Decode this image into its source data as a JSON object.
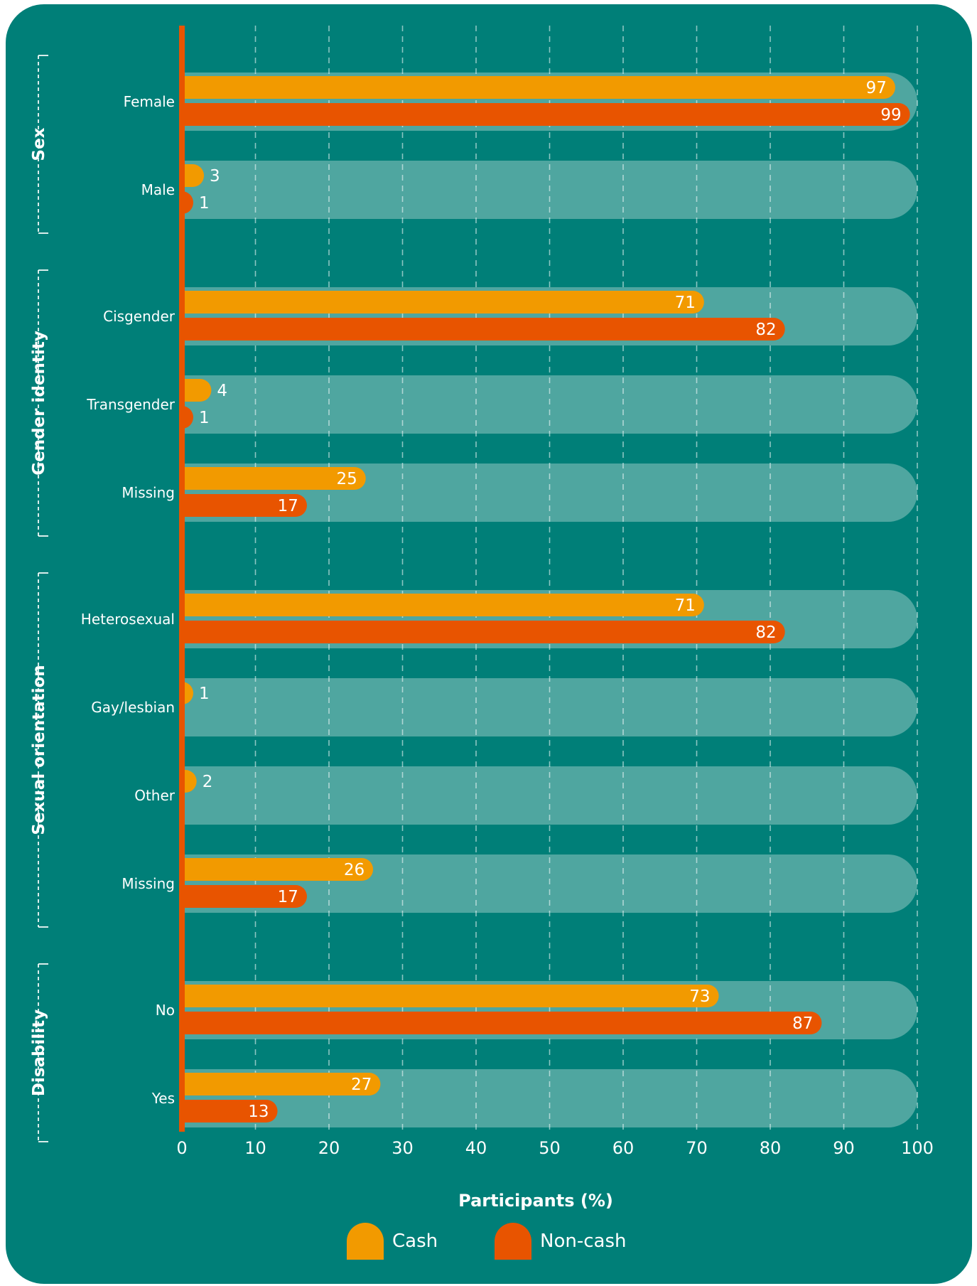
{
  "chart_data": {
    "type": "bar",
    "orientation": "horizontal",
    "xlabel": "Participants (%)",
    "xlim": [
      0,
      100
    ],
    "xticks": [
      "0",
      "10",
      "20",
      "30",
      "40",
      "50",
      "60",
      "70",
      "80",
      "90",
      "100"
    ],
    "grid": true,
    "legend_position": "bottom-center",
    "colors": {
      "Cash": "#f29a00",
      "Non-cash": "#e85400",
      "background": "#007f78",
      "track": "#4fa6a0",
      "axis": "#e85400"
    },
    "series": [
      {
        "name": "Cash"
      },
      {
        "name": "Non-cash"
      }
    ],
    "groups": [
      {
        "name": "Sex",
        "categories": [
          {
            "label": "Female",
            "values": [
              97,
              99
            ]
          },
          {
            "label": "Male",
            "values": [
              3,
              1
            ]
          }
        ]
      },
      {
        "name": "Gender identity",
        "categories": [
          {
            "label": "Cisgender",
            "values": [
              71,
              82
            ]
          },
          {
            "label": "Transgender",
            "values": [
              4,
              1
            ]
          },
          {
            "label": "Missing",
            "values": [
              25,
              17
            ]
          }
        ]
      },
      {
        "name": "Sexual orientation",
        "categories": [
          {
            "label": "Heterosexual",
            "values": [
              71,
              82
            ]
          },
          {
            "label": "Gay/lesbian",
            "values": [
              1,
              null
            ]
          },
          {
            "label": "Other",
            "values": [
              2,
              null
            ]
          },
          {
            "label": "Missing",
            "values": [
              26,
              17
            ]
          }
        ]
      },
      {
        "name": "Disability",
        "categories": [
          {
            "label": "No",
            "values": [
              73,
              87
            ]
          },
          {
            "label": "Yes",
            "values": [
              27,
              13
            ]
          }
        ]
      }
    ]
  }
}
